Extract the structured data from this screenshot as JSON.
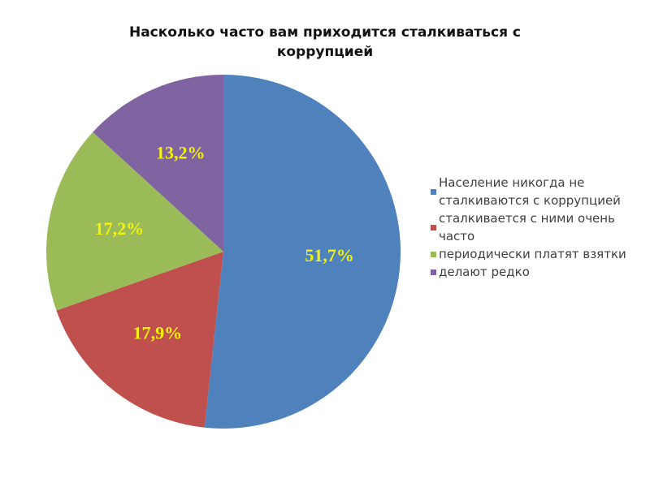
{
  "chart_data": {
    "type": "pie",
    "title": "Насколько часто вам приходится сталкиваться с коррупцией",
    "categories": [
      "Население никогда не сталкиваются с коррупцией",
      "сталкивается с ними очень часто",
      "периодически платят взятки",
      "делают редко"
    ],
    "values": [
      51.7,
      17.9,
      17.2,
      13.2
    ],
    "value_labels": [
      "51,7%",
      "17,9%",
      "17,2%",
      "13,2%"
    ],
    "colors": [
      "#4f81bd",
      "#c0504d",
      "#9bbb59",
      "#8064a2"
    ],
    "legend": "right"
  }
}
